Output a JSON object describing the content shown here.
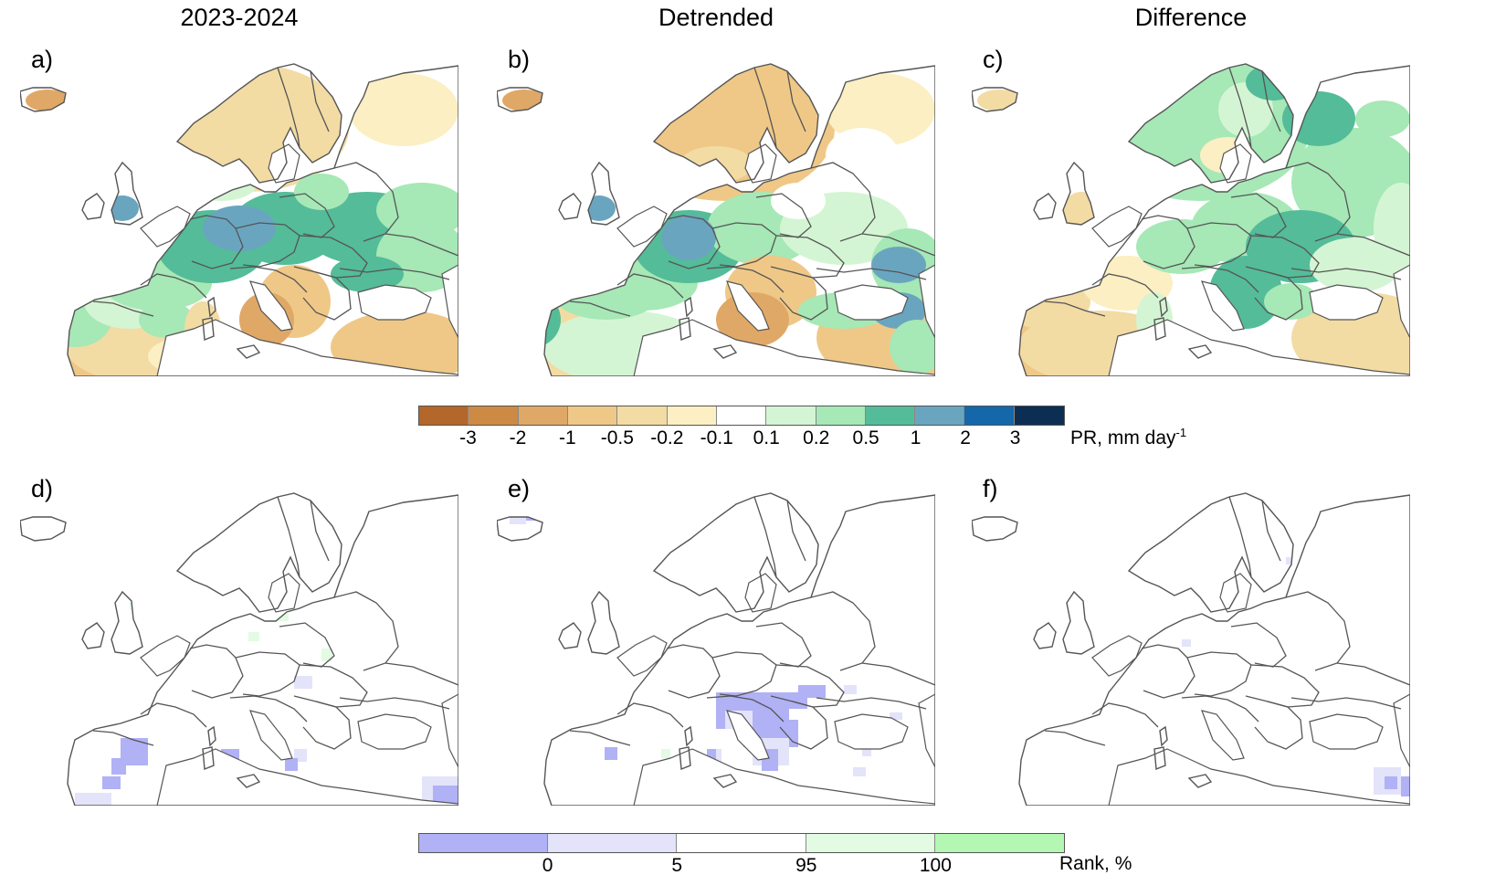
{
  "columns": [
    "2023-2024",
    "Detrended",
    "Difference"
  ],
  "panels": [
    {
      "label": "a)",
      "kind": "precip",
      "pattern": "a"
    },
    {
      "label": "b)",
      "kind": "precip",
      "pattern": "b"
    },
    {
      "label": "c)",
      "kind": "precip",
      "pattern": "c"
    },
    {
      "label": "d)",
      "kind": "rank",
      "pattern": "d"
    },
    {
      "label": "e)",
      "kind": "rank",
      "pattern": "e"
    },
    {
      "label": "f)",
      "kind": "rank",
      "pattern": "f"
    }
  ],
  "precip_colorbar": {
    "title": "PR, mm day",
    "title_sup": "-1",
    "colors": [
      "#b3672a",
      "#cd8a44",
      "#e0a866",
      "#efc887",
      "#f3dba4",
      "#fbefc3",
      "#ffffff",
      "#d4f5d4",
      "#a6e8b6",
      "#54bc98",
      "#6aa5c0",
      "#1467a9",
      "#0c2e52"
    ],
    "ticks": [
      "-3",
      "-2",
      "-1",
      "-0.5",
      "-0.2",
      "-0.1",
      "0.1",
      "0.2",
      "0.5",
      "1",
      "2",
      "3"
    ]
  },
  "rank_colorbar": {
    "title": "Rank, %",
    "colors": [
      "#b1b1f6",
      "#e3e3fa",
      "#ffffff",
      "#e3fae3",
      "#b3f7b3"
    ],
    "ticks": [
      "0",
      "5",
      "95",
      "100"
    ]
  }
}
